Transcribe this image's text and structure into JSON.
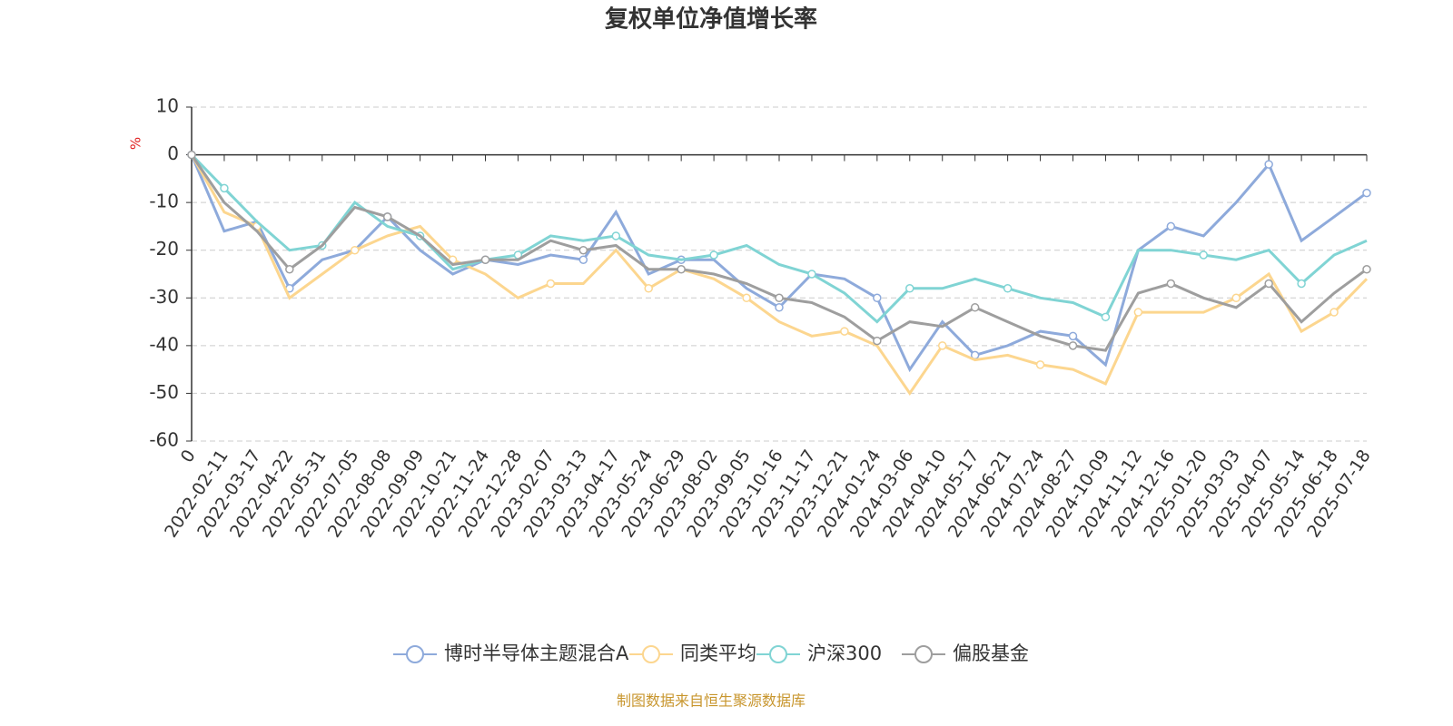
{
  "chart_data": {
    "type": "line",
    "title": "复权单位净值增长率",
    "y_unit": "%",
    "source": "制图数据来自恒生聚源数据库",
    "categories": [
      "0",
      "2022-02-11",
      "2022-03-17",
      "2022-04-22",
      "2022-05-31",
      "2022-07-05",
      "2022-08-08",
      "2022-09-09",
      "2022-10-21",
      "2022-11-24",
      "2022-12-28",
      "2023-02-07",
      "2023-03-13",
      "2023-04-17",
      "2023-05-24",
      "2023-06-29",
      "2023-08-02",
      "2023-09-05",
      "2023-10-16",
      "2023-11-17",
      "2023-12-21",
      "2024-01-24",
      "2024-03-06",
      "2024-04-10",
      "2024-05-17",
      "2024-06-21",
      "2024-07-24",
      "2024-08-27",
      "2024-10-09",
      "2024-11-12",
      "2024-12-16",
      "2025-01-20",
      "2025-03-03",
      "2025-04-07",
      "2025-05-14",
      "2025-06-18",
      "2025-07-18"
    ],
    "series": [
      {
        "name": "博时半导体主题混合A",
        "color": "#8eaadb",
        "values": [
          0,
          -16,
          -14,
          -28,
          -22,
          -20,
          -13,
          -20,
          -25,
          -22,
          -23,
          -21,
          -22,
          -12,
          -25,
          -22,
          -22,
          -28,
          -32,
          -25,
          -26,
          -30,
          -45,
          -35,
          -42,
          -40,
          -37,
          -38,
          -44,
          -20,
          -15,
          -17,
          -10,
          -2,
          -18,
          -13,
          -8
        ]
      },
      {
        "name": "同类平均",
        "color": "#fcd68f",
        "values": [
          0,
          -12,
          -15,
          -30,
          -25,
          -20,
          -17,
          -15,
          -22,
          -25,
          -30,
          -27,
          -27,
          -20,
          -28,
          -24,
          -26,
          -30,
          -35,
          -38,
          -37,
          -40,
          -50,
          -40,
          -43,
          -42,
          -44,
          -45,
          -48,
          -33,
          -33,
          -33,
          -30,
          -25,
          -37,
          -33,
          -26
        ]
      },
      {
        "name": "沪深300",
        "color": "#80d4d4",
        "values": [
          0,
          -7,
          -14,
          -20,
          -19,
          -10,
          -15,
          -17,
          -24,
          -22,
          -21,
          -17,
          -18,
          -17,
          -21,
          -22,
          -21,
          -19,
          -23,
          -25,
          -29,
          -35,
          -28,
          -28,
          -26,
          -28,
          -30,
          -31,
          -34,
          -20,
          -20,
          -21,
          -22,
          -20,
          -27,
          -21,
          -18
        ]
      },
      {
        "name": "偏股基金",
        "color": "#9e9e9e",
        "values": [
          0,
          -10,
          -16,
          -24,
          -19,
          -11,
          -13,
          -17,
          -23,
          -22,
          -22,
          -18,
          -20,
          -19,
          -24,
          -24,
          -25,
          -27,
          -30,
          -31,
          -34,
          -39,
          -35,
          -36,
          -32,
          -35,
          -38,
          -40,
          -41,
          -29,
          -27,
          -30,
          -32,
          -27,
          -35,
          -29,
          -24
        ]
      }
    ],
    "ylim": [
      -60,
      10
    ],
    "yticks": [
      -60,
      -50,
      -40,
      -30,
      -20,
      -10,
      0,
      10
    ],
    "grid": true
  }
}
